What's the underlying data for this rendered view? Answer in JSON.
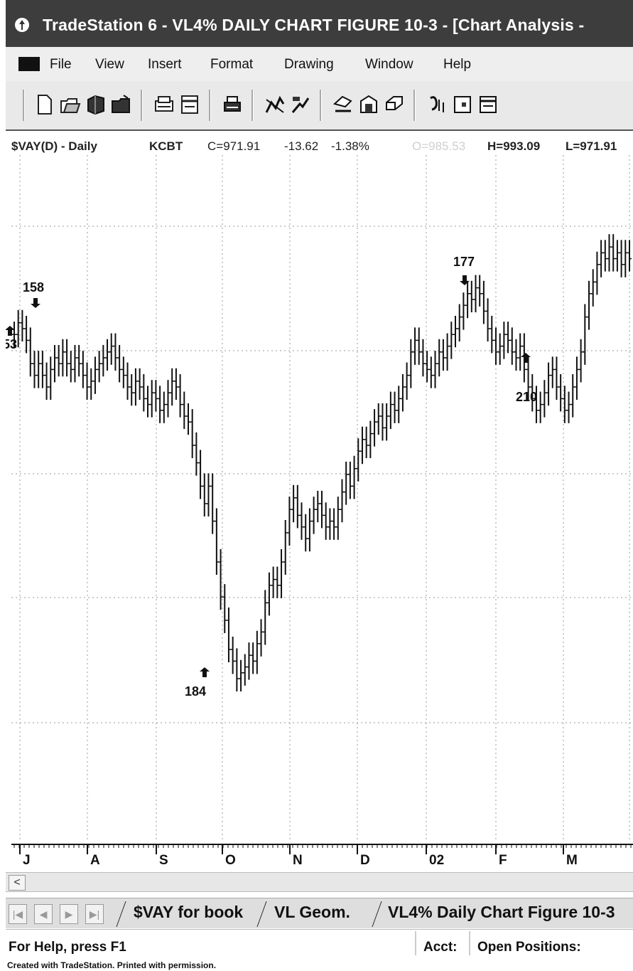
{
  "window": {
    "title": "TradeStation 6 - VL4% DAILY CHART FIGURE 10-3 - [Chart Analysis -"
  },
  "menu": [
    "File",
    "View",
    "Insert",
    "Format",
    "Drawing",
    "Window",
    "Help"
  ],
  "toolbar_icons": [
    "new-icon",
    "open-icon",
    "workspace-icon",
    "folder-icon",
    "print-preview-icon",
    "page-setup-icon",
    "print-icon",
    "insert-analysis-icon",
    "insert-drawing-icon",
    "format-icon",
    "properties-icon",
    "format-window-icon",
    "insert-symbol-icon",
    "window-icon",
    "data-window-icon"
  ],
  "quote": {
    "symbol": "$VAY(D) - Daily",
    "exchange": "KCBT",
    "close": "C=971.91",
    "change": "-13.62",
    "pct": "-1.38%",
    "open": "O=985.53",
    "high": "H=993.09",
    "low": "L=971.91"
  },
  "chart_data": {
    "type": "line",
    "style": "ohlc-bars",
    "x_ticks": [
      "J",
      "A",
      "S",
      "O",
      "N",
      "D",
      "02",
      "F",
      "M"
    ],
    "grid": true,
    "y_gridlines": 5,
    "series": [
      {
        "values": [
          0.79,
          0.81,
          0.8,
          0.78,
          0.74,
          0.72,
          0.74,
          0.72,
          0.7,
          0.73,
          0.75,
          0.74,
          0.76,
          0.74,
          0.73,
          0.75,
          0.74,
          0.72,
          0.7,
          0.71,
          0.73,
          0.74,
          0.75,
          0.76,
          0.77,
          0.75,
          0.73,
          0.72,
          0.7,
          0.69,
          0.71,
          0.7,
          0.68,
          0.67,
          0.69,
          0.68,
          0.66,
          0.67,
          0.69,
          0.71,
          0.7,
          0.67,
          0.65,
          0.64,
          0.6,
          0.57,
          0.53,
          0.5,
          0.53,
          0.47,
          0.4,
          0.34,
          0.3,
          0.25,
          0.23,
          0.2,
          0.21,
          0.22,
          0.24,
          0.23,
          0.26,
          0.28,
          0.33,
          0.36,
          0.37,
          0.36,
          0.4,
          0.45,
          0.49,
          0.51,
          0.48,
          0.46,
          0.44,
          0.47,
          0.49,
          0.5,
          0.48,
          0.46,
          0.47,
          0.46,
          0.49,
          0.52,
          0.55,
          0.53,
          0.56,
          0.59,
          0.61,
          0.6,
          0.62,
          0.64,
          0.65,
          0.63,
          0.65,
          0.67,
          0.66,
          0.68,
          0.7,
          0.72,
          0.76,
          0.78,
          0.76,
          0.74,
          0.73,
          0.72,
          0.74,
          0.76,
          0.75,
          0.77,
          0.79,
          0.8,
          0.82,
          0.84,
          0.86,
          0.85,
          0.87,
          0.86,
          0.83,
          0.8,
          0.78,
          0.76,
          0.77,
          0.79,
          0.78,
          0.76,
          0.75,
          0.77,
          0.73,
          0.7,
          0.68,
          0.66,
          0.67,
          0.69,
          0.72,
          0.73,
          0.7,
          0.68,
          0.66,
          0.67,
          0.7,
          0.73,
          0.76,
          0.82,
          0.86,
          0.88,
          0.91,
          0.93,
          0.92,
          0.94,
          0.92,
          0.93,
          0.91,
          0.93,
          0.92
        ]
      }
    ],
    "annotations": [
      {
        "label": "158",
        "arrow": "down"
      },
      {
        "label": "53",
        "arrow": "up"
      },
      {
        "label": "184",
        "arrow": "up"
      },
      {
        "label": "177",
        "arrow": "down"
      },
      {
        "label": "210",
        "arrow": "up"
      }
    ]
  },
  "scrollbar": {
    "left_arrow": "<"
  },
  "tabs": [
    "$VAY for book",
    "VL Geom.",
    "VL4% Daily Chart Figure 10-3"
  ],
  "status": {
    "help": "For Help, press F1",
    "acct": "Acct:",
    "positions": "Open Positions:"
  },
  "credit": "Created with TradeStation. Printed with permission."
}
